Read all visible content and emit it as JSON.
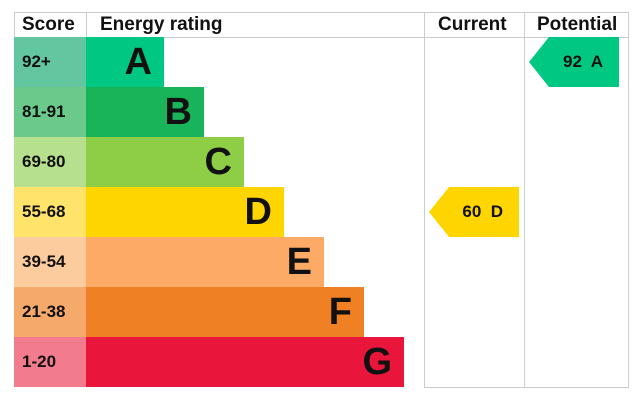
{
  "chart_data": {
    "type": "bar",
    "headers": {
      "score": "Score",
      "rating": "Energy rating",
      "current": "Current",
      "potential": "Potential"
    },
    "bands": [
      {
        "score": "92+",
        "letter": "A",
        "color": "#00c781",
        "score_color": "#63c6a0"
      },
      {
        "score": "81-91",
        "letter": "B",
        "color": "#19b459",
        "score_color": "#6cc98c"
      },
      {
        "score": "69-80",
        "letter": "C",
        "color": "#8dce46",
        "score_color": "#b6df8e"
      },
      {
        "score": "55-68",
        "letter": "D",
        "color": "#ffd500",
        "score_color": "#ffe36b"
      },
      {
        "score": "39-54",
        "letter": "E",
        "color": "#fcaa65",
        "score_color": "#fdcc9e"
      },
      {
        "score": "21-38",
        "letter": "F",
        "color": "#ef8023",
        "score_color": "#f5a96a"
      },
      {
        "score": "1-20",
        "letter": "G",
        "color": "#e9153b",
        "score_color": "#f37b8e"
      }
    ],
    "current": {
      "value": 60,
      "letter": "D",
      "label": "60  D"
    },
    "potential": {
      "value": 92,
      "letter": "A",
      "label": "92  A"
    }
  }
}
